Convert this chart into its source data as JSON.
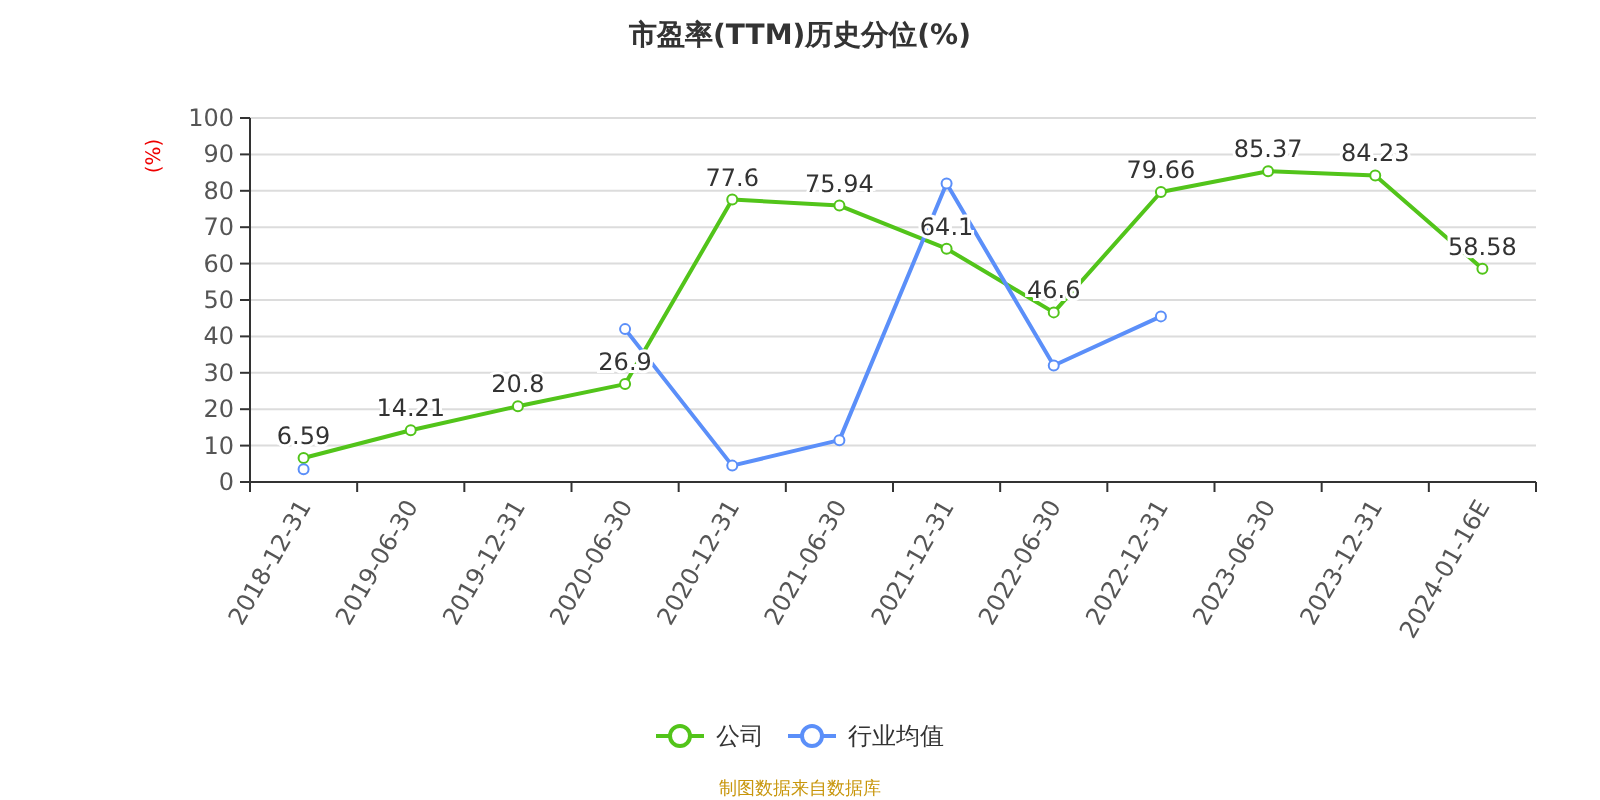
{
  "chart_data": {
    "type": "line",
    "title": "市盈率(TTM)历史分位(%)",
    "ylabel": "(%)",
    "categories": [
      "2018-12-31",
      "2019-06-30",
      "2019-12-31",
      "2020-06-30",
      "2020-12-31",
      "2021-06-30",
      "2021-12-31",
      "2022-06-30",
      "2022-12-31",
      "2023-06-30",
      "2023-12-31",
      "2024-01-16E"
    ],
    "series": [
      {
        "name": "公司",
        "color": "#52c41a",
        "values": [
          6.59,
          14.21,
          20.8,
          26.9,
          77.6,
          75.94,
          64.1,
          46.6,
          79.66,
          85.37,
          84.23,
          58.58
        ],
        "value_labels": [
          "6.59",
          "14.21",
          "20.8",
          "26.9",
          "77.6",
          "75.94",
          "64.1",
          "46.6",
          "79.66",
          "85.37",
          "84.23",
          "58.58"
        ]
      },
      {
        "name": "行业均值",
        "color": "#5b8ff9",
        "values": [
          3.5,
          null,
          null,
          42,
          4.5,
          11.5,
          82,
          32,
          45.5,
          null,
          null,
          null
        ]
      }
    ],
    "ylim": [
      0,
      100
    ],
    "yticks": [
      0,
      10,
      20,
      30,
      40,
      50,
      60,
      70,
      80,
      90,
      100
    ],
    "grid": "y",
    "marker": "circle",
    "legend": "bottom",
    "annotations": [
      "制图数据来自数据库"
    ]
  }
}
